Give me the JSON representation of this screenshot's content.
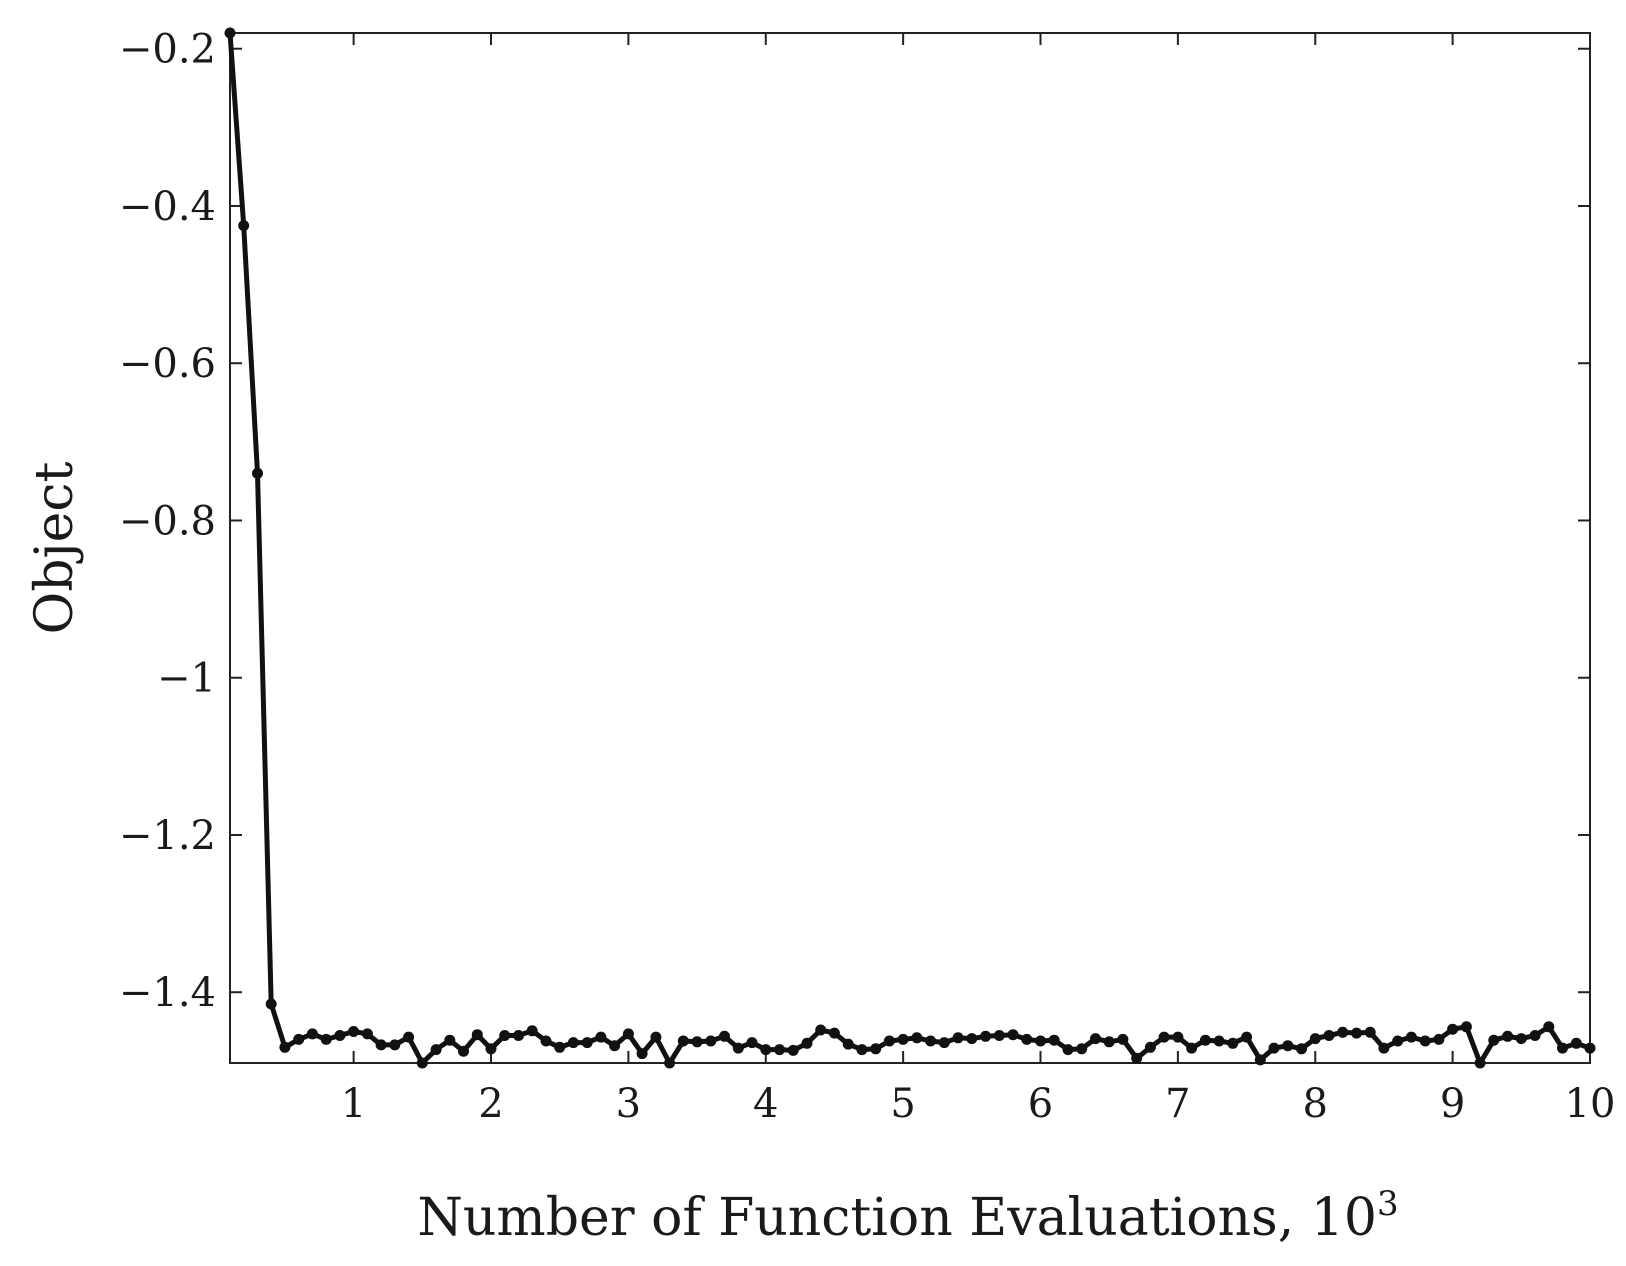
{
  "chart_data": {
    "type": "line",
    "title": "",
    "xlabel": "Number of Function Evaluations, 10",
    "xlabel_superscript": "3",
    "ylabel": "Object",
    "xlim": [
      0.1,
      10
    ],
    "ylim": [
      -1.49,
      -0.18
    ],
    "xticks": [
      1,
      2,
      3,
      4,
      5,
      6,
      7,
      8,
      9,
      10
    ],
    "xtick_labels": [
      "1",
      "2",
      "3",
      "4",
      "5",
      "6",
      "7",
      "8",
      "9",
      "10"
    ],
    "yticks": [
      -0.2,
      -0.4,
      -0.6,
      -0.8,
      -1,
      -1.2,
      -1.4
    ],
    "ytick_labels": [
      "−0.2",
      "−0.4",
      "−0.6",
      "−0.8",
      "−1",
      "−1.2",
      "−1.4"
    ],
    "grid": false,
    "line_color": "#111111",
    "series": [
      {
        "x": [
          0.1,
          0.2,
          0.3,
          0.4,
          0.5,
          0.6,
          0.7,
          0.8,
          0.9,
          1.0,
          1.1,
          1.2,
          1.3,
          1.4,
          1.5,
          1.6,
          1.7,
          1.8,
          1.9,
          2.0,
          2.1,
          2.2,
          2.3,
          2.4,
          2.5,
          2.6,
          2.7,
          2.8,
          2.9,
          3.0,
          3.1,
          3.2,
          3.3,
          3.4,
          3.5,
          3.6,
          3.7,
          3.8,
          3.9,
          4.0,
          4.1,
          4.2,
          4.3,
          4.4,
          4.5,
          4.6,
          4.7,
          4.8,
          4.9,
          5.0,
          5.1,
          5.2,
          5.3,
          5.4,
          5.5,
          5.6,
          5.7,
          5.8,
          5.9,
          6.0,
          6.1,
          6.2,
          6.3,
          6.4,
          6.5,
          6.6,
          6.7,
          6.8,
          6.9,
          7.0,
          7.1,
          7.2,
          7.3,
          7.4,
          7.5,
          7.6,
          7.7,
          7.8,
          7.9,
          8.0,
          8.1,
          8.2,
          8.3,
          8.4,
          8.5,
          8.6,
          8.7,
          8.8,
          8.9,
          9.0,
          9.1,
          9.2,
          9.3,
          9.4,
          9.5,
          9.6,
          9.7,
          9.8,
          9.9,
          10.0
        ],
        "values": [
          -0.18,
          -0.425,
          -0.74,
          -1.415,
          -1.47,
          -1.46,
          -1.453,
          -1.46,
          -1.455,
          -1.45,
          -1.453,
          -1.467,
          -1.467,
          -1.457,
          -1.49,
          -1.473,
          -1.461,
          -1.475,
          -1.454,
          -1.472,
          -1.455,
          -1.455,
          -1.449,
          -1.462,
          -1.47,
          -1.464,
          -1.464,
          -1.457,
          -1.468,
          -1.453,
          -1.478,
          -1.457,
          -1.49,
          -1.462,
          -1.463,
          -1.462,
          -1.456,
          -1.471,
          -1.464,
          -1.473,
          -1.473,
          -1.474,
          -1.465,
          -1.448,
          -1.452,
          -1.466,
          -1.473,
          -1.472,
          -1.462,
          -1.46,
          -1.458,
          -1.462,
          -1.464,
          -1.458,
          -1.459,
          -1.456,
          -1.455,
          -1.454,
          -1.46,
          -1.462,
          -1.461,
          -1.473,
          -1.472,
          -1.459,
          -1.463,
          -1.46,
          -1.484,
          -1.47,
          -1.457,
          -1.457,
          -1.471,
          -1.461,
          -1.462,
          -1.465,
          -1.457,
          -1.486,
          -1.471,
          -1.468,
          -1.472,
          -1.459,
          -1.455,
          -1.451,
          -1.452,
          -1.451,
          -1.471,
          -1.462,
          -1.457,
          -1.462,
          -1.46,
          -1.447,
          -1.444,
          -1.49,
          -1.461,
          -1.456,
          -1.459,
          -1.455,
          -1.444,
          -1.471,
          -1.465,
          -1.471
        ]
      }
    ]
  }
}
